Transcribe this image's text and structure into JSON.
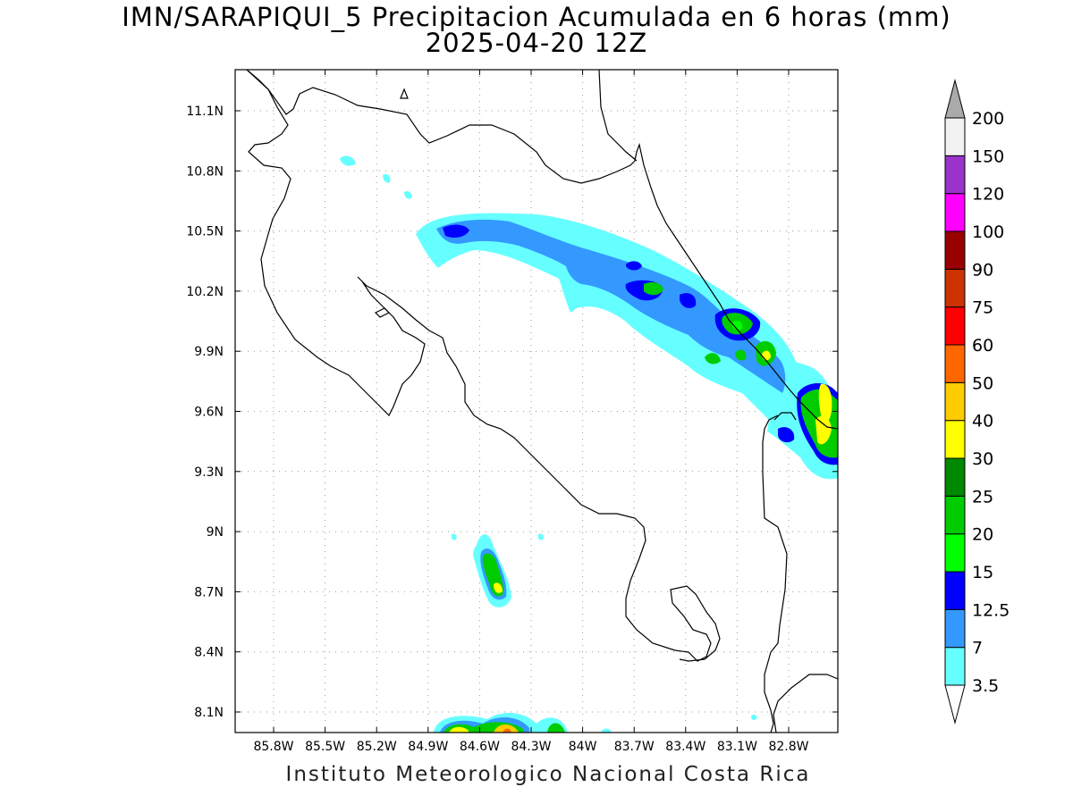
{
  "title": {
    "line1": "IMN/SARAPIQUI_5 Precipitacion Acumulada en 6 horas (mm)",
    "line2": "2025-04-20 12Z"
  },
  "footer": "Instituto Meteorologico Nacional Costa Rica",
  "map": {
    "lon_range": [
      -86.0,
      -83.0
    ],
    "lat_range": [
      8.0,
      11.2
    ],
    "x_ticks": [
      "85.8W",
      "85.5W",
      "85.2W",
      "84.9W",
      "84.6W",
      "84.3W",
      "84W",
      "83.7W",
      "83.4W",
      "83.1W",
      "82.8W"
    ],
    "y_ticks": [
      "11.1N",
      "10.8N",
      "10.5N",
      "10.2N",
      "9.9N",
      "9.6N",
      "9.3N",
      "9N",
      "8.7N",
      "8.4N",
      "8.1N"
    ],
    "grid": "dotted"
  },
  "colorbar": {
    "levels": [
      "3.5",
      "7",
      "12.5",
      "15",
      "20",
      "25",
      "30",
      "40",
      "50",
      "60",
      "75",
      "90",
      "100",
      "120",
      "150",
      "200"
    ],
    "colors": [
      "#66ffff",
      "#3399ff",
      "#0000ff",
      "#00ff00",
      "#00cc00",
      "#008800",
      "#ffff00",
      "#ffcc00",
      "#ff6600",
      "#ff0000",
      "#cc3300",
      "#990000",
      "#ff00ff",
      "#9933cc",
      "#f2f2f2",
      "#aaaaaa"
    ]
  }
}
